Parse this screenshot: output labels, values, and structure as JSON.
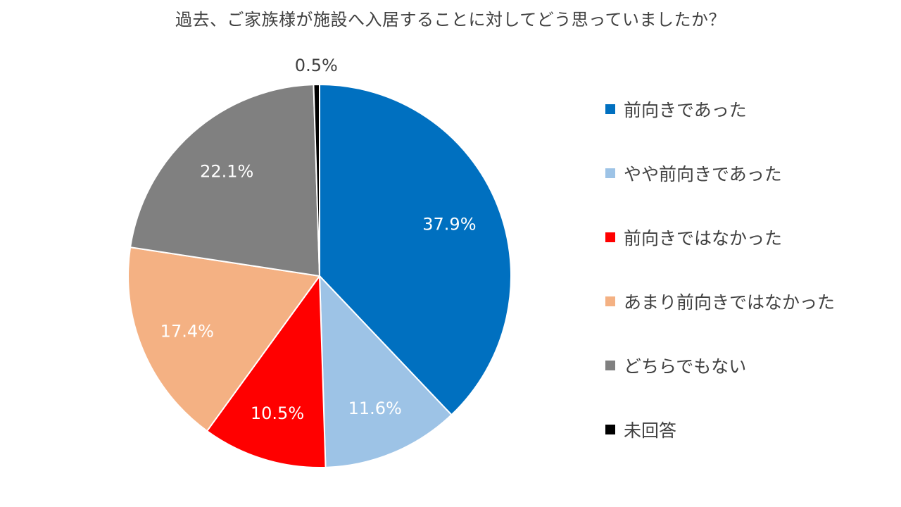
{
  "chart_data": {
    "type": "pie",
    "title": "過去、ご家族様が施設へ入居することに対してどう思っていましたか？",
    "slices": [
      {
        "name": "前向きであった",
        "value": 37.9,
        "label": "37.9%",
        "color": "#0070C0",
        "label_color": "#ffffff"
      },
      {
        "name": "やや前向きであった",
        "value": 11.6,
        "label": "11.6%",
        "color": "#9DC3E6",
        "label_color": "#ffffff"
      },
      {
        "name": "前向きではなかった",
        "value": 10.5,
        "label": "10.5%",
        "color": "#FF0000",
        "label_color": "#ffffff"
      },
      {
        "name": "あまり前向きではなかった",
        "value": 17.4,
        "label": "17.4%",
        "color": "#F4B183",
        "label_color": "#ffffff"
      },
      {
        "name": "どちらでもない",
        "value": 22.1,
        "label": "22.1%",
        "color": "#808080",
        "label_color": "#ffffff"
      },
      {
        "name": "未回答",
        "value": 0.5,
        "label": "0.5%",
        "color": "#000000",
        "label_color": "#404040"
      }
    ],
    "start": "12 o'clock",
    "direction": "clockwise",
    "legend_position": "right"
  }
}
